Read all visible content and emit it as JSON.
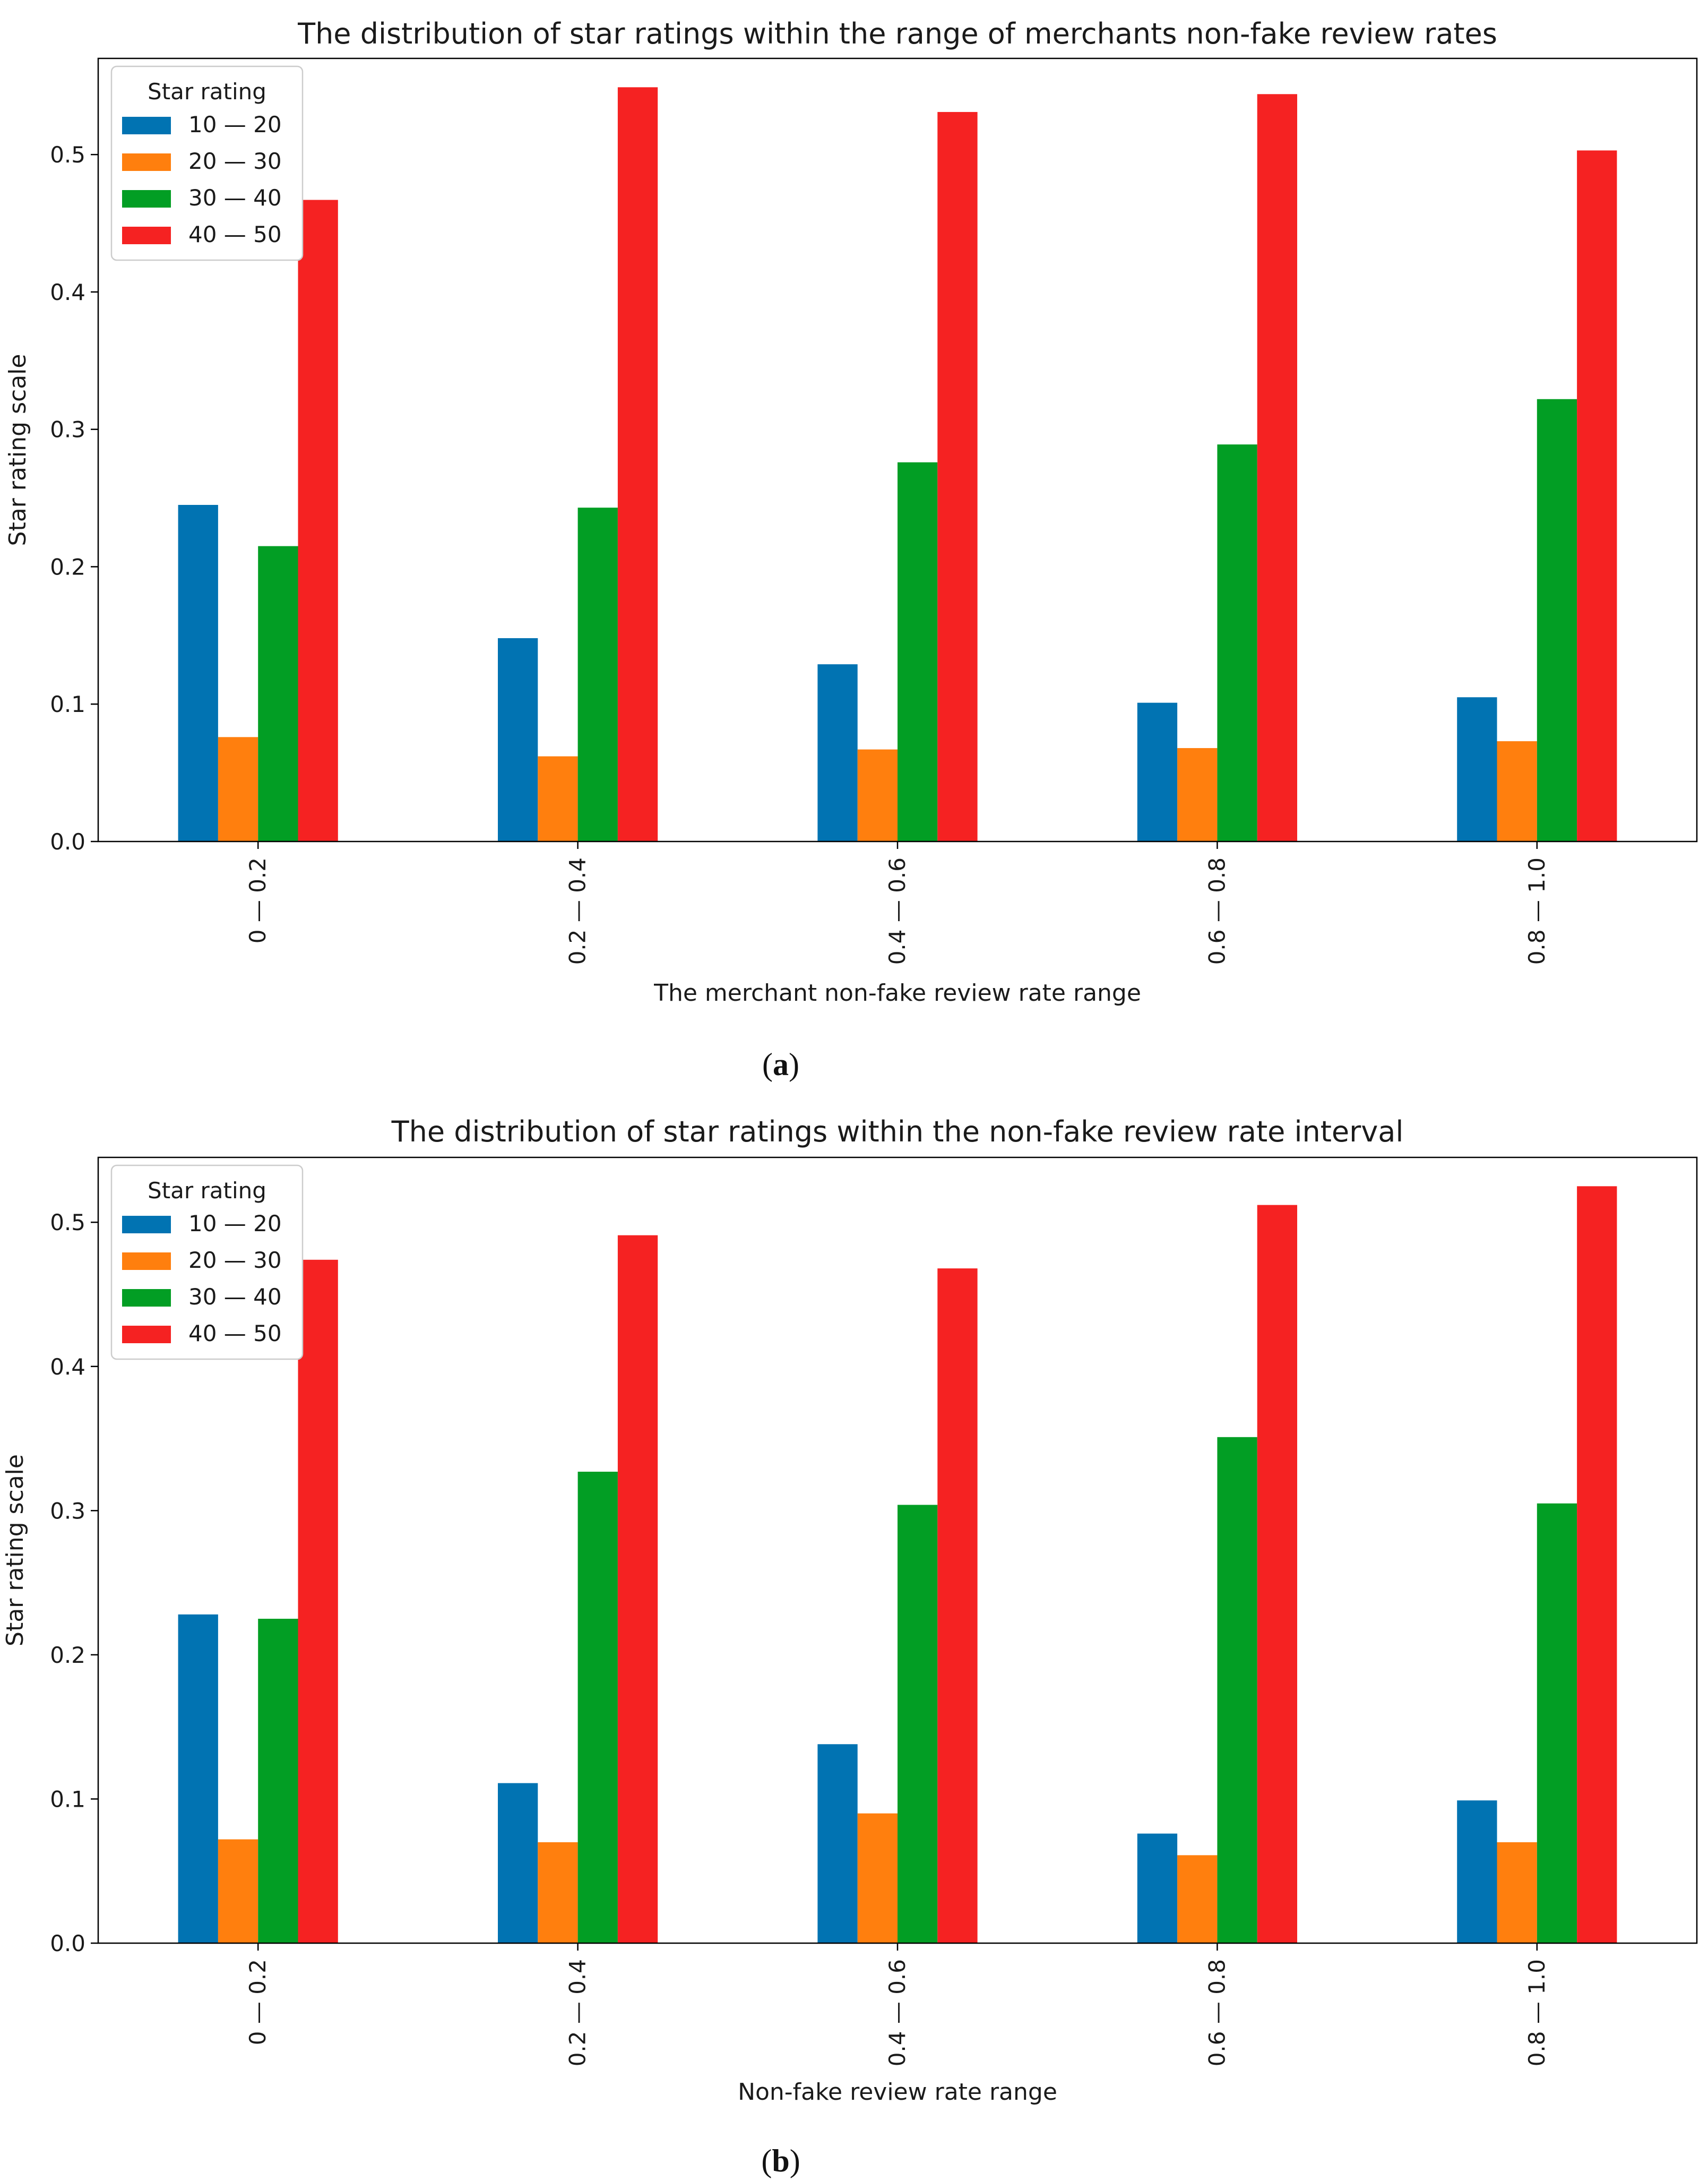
{
  "chart_data": [
    {
      "type": "bar",
      "title": "The distribution of star ratings within the range of merchants non-fake review rates",
      "xlabel": "The merchant non-fake review rate range",
      "ylabel": "Star rating scale",
      "ylim": [
        0,
        0.57
      ],
      "yticks": [
        "0.0",
        "0.1",
        "0.2",
        "0.3",
        "0.4",
        "0.5"
      ],
      "categories": [
        "0 — 0.2",
        "0.2 — 0.4",
        "0.4 — 0.6",
        "0.6 — 0.8",
        "0.8 — 1.0"
      ],
      "legend_title": "Star rating",
      "legend_position": "top-left",
      "grid": false,
      "caption_prefix": "(",
      "caption_letter": "a",
      "caption_suffix": ")",
      "series": [
        {
          "name": "10 — 20",
          "color": "#0173b2",
          "values": [
            0.245,
            0.148,
            0.129,
            0.101,
            0.105
          ]
        },
        {
          "name": "20 — 30",
          "color": "#ff7f0e",
          "values": [
            0.076,
            0.062,
            0.067,
            0.068,
            0.073
          ]
        },
        {
          "name": "30 — 40",
          "color": "#029e24",
          "values": [
            0.215,
            0.243,
            0.276,
            0.289,
            0.322
          ]
        },
        {
          "name": "40 — 50",
          "color": "#f52222",
          "values": [
            0.467,
            0.549,
            0.531,
            0.544,
            0.503
          ]
        }
      ]
    },
    {
      "type": "bar",
      "title": "The distribution of star ratings within the non-fake review rate interval",
      "xlabel": "Non-fake review rate range",
      "ylabel": "Star rating scale",
      "ylim": [
        0,
        0.545
      ],
      "yticks": [
        "0.0",
        "0.1",
        "0.2",
        "0.3",
        "0.4",
        "0.5"
      ],
      "categories": [
        "0 — 0.2",
        "0.2 — 0.4",
        "0.4 — 0.6",
        "0.6 — 0.8",
        "0.8 — 1.0"
      ],
      "legend_title": "Star rating",
      "legend_position": "top-left",
      "grid": false,
      "caption_prefix": "(",
      "caption_letter": "b",
      "caption_suffix": ")",
      "series": [
        {
          "name": "10 — 20",
          "color": "#0173b2",
          "values": [
            0.228,
            0.111,
            0.138,
            0.076,
            0.099
          ]
        },
        {
          "name": "20 — 30",
          "color": "#ff7f0e",
          "values": [
            0.072,
            0.07,
            0.09,
            0.061,
            0.07
          ]
        },
        {
          "name": "30 — 40",
          "color": "#029e24",
          "values": [
            0.225,
            0.327,
            0.304,
            0.351,
            0.305
          ]
        },
        {
          "name": "40 — 50",
          "color": "#f52222",
          "values": [
            0.474,
            0.491,
            0.468,
            0.512,
            0.525
          ]
        }
      ]
    }
  ]
}
